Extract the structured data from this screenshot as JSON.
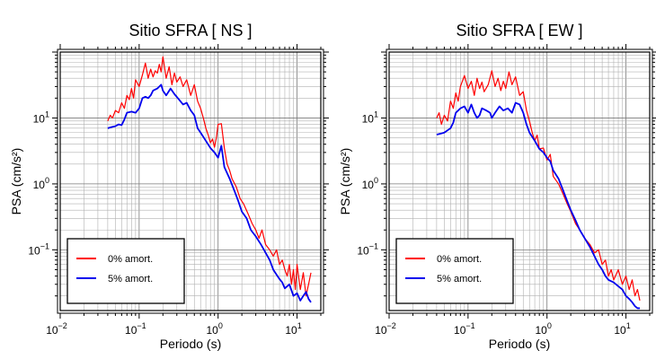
{
  "chart_data": [
    {
      "type": "line",
      "title": "Sitio SFRA [ NS ]",
      "xlabel": "Periodo (s)",
      "ylabel": "PSA (cm/s²)",
      "xscale": "log",
      "yscale": "log",
      "xlim": [
        0.01,
        20
      ],
      "ylim": [
        0.012,
        100
      ],
      "grid": true,
      "legend_position": "bottom-left",
      "x_ticks": [
        {
          "value": 0.01,
          "base": "10",
          "exp": "−2"
        },
        {
          "value": 0.1,
          "base": "10",
          "exp": "−1"
        },
        {
          "value": 1,
          "base": "10",
          "exp": "0"
        },
        {
          "value": 10,
          "base": "10",
          "exp": "1"
        }
      ],
      "y_ticks": [
        {
          "value": 0.1,
          "base": "10",
          "exp": "−1"
        },
        {
          "value": 1,
          "base": "10",
          "exp": "0"
        },
        {
          "value": 10,
          "base": "10",
          "exp": "1"
        }
      ],
      "series": [
        {
          "name": "0% amort.",
          "color": "#ff0000",
          "x": [
            0.04,
            0.043,
            0.046,
            0.05,
            0.055,
            0.06,
            0.065,
            0.07,
            0.075,
            0.08,
            0.085,
            0.09,
            0.1,
            0.11,
            0.12,
            0.13,
            0.14,
            0.15,
            0.16,
            0.17,
            0.18,
            0.19,
            0.2,
            0.22,
            0.24,
            0.26,
            0.28,
            0.3,
            0.33,
            0.36,
            0.4,
            0.45,
            0.5,
            0.55,
            0.6,
            0.65,
            0.7,
            0.75,
            0.8,
            0.85,
            0.9,
            0.95,
            1.0,
            1.1,
            1.2,
            1.3,
            1.4,
            1.5,
            1.7,
            1.9,
            2.1,
            2.4,
            2.7,
            3.0,
            3.3,
            3.6,
            4.0,
            4.5,
            5.0,
            5.5,
            6.0,
            6.5,
            7.0,
            7.5,
            8.0,
            8.5,
            9.0,
            9.5,
            10,
            11,
            12,
            13,
            14,
            15
          ],
          "y": [
            9,
            11,
            10,
            13,
            12,
            17,
            14,
            22,
            19,
            28,
            20,
            38,
            30,
            45,
            68,
            40,
            55,
            42,
            52,
            48,
            65,
            50,
            85,
            40,
            60,
            32,
            48,
            35,
            42,
            30,
            38,
            22,
            32,
            18,
            14,
            10,
            7,
            5.5,
            4.2,
            4.8,
            3.6,
            5,
            8,
            8.2,
            3.5,
            2.0,
            1.6,
            1.2,
            0.9,
            0.6,
            0.5,
            0.35,
            0.25,
            0.2,
            0.15,
            0.2,
            0.12,
            0.1,
            0.08,
            0.1,
            0.06,
            0.07,
            0.05,
            0.04,
            0.06,
            0.03,
            0.05,
            0.025,
            0.06,
            0.025,
            0.045,
            0.02,
            0.03,
            0.045
          ]
        },
        {
          "name": "5% amort.",
          "color": "#0000ee",
          "x": [
            0.04,
            0.045,
            0.05,
            0.055,
            0.06,
            0.065,
            0.07,
            0.08,
            0.09,
            0.1,
            0.11,
            0.12,
            0.13,
            0.14,
            0.15,
            0.17,
            0.19,
            0.2,
            0.22,
            0.25,
            0.28,
            0.32,
            0.36,
            0.4,
            0.45,
            0.5,
            0.55,
            0.6,
            0.7,
            0.8,
            0.9,
            1.0,
            1.1,
            1.2,
            1.4,
            1.6,
            1.8,
            2.0,
            2.3,
            2.6,
            3.0,
            3.5,
            4.0,
            4.5,
            5.0,
            5.5,
            6.0,
            6.5,
            7.0,
            8.0,
            9.0,
            10,
            11,
            12,
            13,
            14,
            15
          ],
          "y": [
            7,
            7.3,
            7.5,
            8,
            7.8,
            9.5,
            12,
            12.5,
            12,
            14,
            20,
            21,
            20,
            22,
            26,
            28,
            32,
            26,
            22,
            28,
            23,
            19,
            16,
            17,
            13,
            11,
            7,
            6,
            4.5,
            3.5,
            3,
            2.5,
            3.8,
            1.8,
            1.2,
            0.8,
            0.55,
            0.38,
            0.3,
            0.2,
            0.16,
            0.12,
            0.09,
            0.07,
            0.05,
            0.042,
            0.036,
            0.032,
            0.026,
            0.03,
            0.02,
            0.022,
            0.017,
            0.02,
            0.023,
            0.018,
            0.016
          ]
        }
      ]
    },
    {
      "type": "line",
      "title": "Sitio SFRA [ EW ]",
      "xlabel": "Periodo (s)",
      "ylabel": "PSA (cm/s²)",
      "xscale": "log",
      "yscale": "log",
      "xlim": [
        0.01,
        20
      ],
      "ylim": [
        0.012,
        100
      ],
      "grid": true,
      "legend_position": "bottom-left",
      "x_ticks": [
        {
          "value": 0.01,
          "base": "10",
          "exp": "−2"
        },
        {
          "value": 0.1,
          "base": "10",
          "exp": "−1"
        },
        {
          "value": 1,
          "base": "10",
          "exp": "0"
        },
        {
          "value": 10,
          "base": "10",
          "exp": "1"
        }
      ],
      "y_ticks": [
        {
          "value": 0.1,
          "base": "10",
          "exp": "−1"
        },
        {
          "value": 1,
          "base": "10",
          "exp": "0"
        },
        {
          "value": 10,
          "base": "10",
          "exp": "1"
        }
      ],
      "series": [
        {
          "name": "0% amort.",
          "color": "#ff0000",
          "x": [
            0.04,
            0.043,
            0.046,
            0.05,
            0.055,
            0.06,
            0.065,
            0.07,
            0.075,
            0.08,
            0.09,
            0.1,
            0.11,
            0.12,
            0.13,
            0.14,
            0.15,
            0.16,
            0.18,
            0.2,
            0.22,
            0.24,
            0.26,
            0.28,
            0.3,
            0.33,
            0.36,
            0.4,
            0.45,
            0.5,
            0.55,
            0.6,
            0.65,
            0.7,
            0.75,
            0.8,
            0.9,
            1.0,
            1.1,
            1.2,
            1.4,
            1.6,
            1.8,
            2.0,
            2.3,
            2.6,
            3.0,
            3.5,
            4.0,
            4.5,
            5.0,
            5.5,
            6.0,
            6.5,
            7.0,
            8.0,
            9.0,
            10,
            11,
            12,
            13,
            14,
            15
          ],
          "y": [
            10,
            12,
            8,
            11,
            9,
            18,
            14,
            24,
            18,
            30,
            44,
            28,
            36,
            22,
            40,
            28,
            35,
            25,
            32,
            52,
            30,
            40,
            26,
            36,
            28,
            50,
            32,
            42,
            22,
            25,
            13,
            9,
            6,
            4.5,
            5.5,
            3.4,
            3.5,
            2.3,
            2.8,
            1.3,
            1.0,
            0.7,
            0.5,
            0.38,
            0.25,
            0.2,
            0.15,
            0.12,
            0.09,
            0.1,
            0.06,
            0.07,
            0.04,
            0.05,
            0.035,
            0.05,
            0.03,
            0.04,
            0.025,
            0.035,
            0.02,
            0.025,
            0.017
          ]
        },
        {
          "name": "5% amort.",
          "color": "#0000ee",
          "x": [
            0.04,
            0.045,
            0.05,
            0.055,
            0.06,
            0.065,
            0.07,
            0.08,
            0.09,
            0.1,
            0.11,
            0.12,
            0.13,
            0.14,
            0.15,
            0.17,
            0.19,
            0.2,
            0.22,
            0.25,
            0.28,
            0.32,
            0.36,
            0.4,
            0.45,
            0.5,
            0.55,
            0.6,
            0.7,
            0.8,
            0.9,
            1.0,
            1.1,
            1.2,
            1.4,
            1.6,
            1.8,
            2.0,
            2.3,
            2.6,
            3.0,
            3.5,
            4.0,
            4.5,
            5.0,
            5.5,
            6.0,
            7.0,
            8.0,
            9.0,
            10,
            11,
            12,
            13,
            14,
            15
          ],
          "y": [
            5.6,
            5.8,
            6,
            6.5,
            7,
            8.5,
            12,
            14,
            15,
            12,
            16,
            12,
            10,
            11,
            14,
            13,
            12,
            10,
            12,
            15,
            13,
            14,
            12,
            17,
            16,
            12,
            8,
            6,
            4.5,
            3.4,
            3,
            2.5,
            2.2,
            1.6,
            1.2,
            0.8,
            0.55,
            0.4,
            0.28,
            0.2,
            0.15,
            0.11,
            0.08,
            0.06,
            0.05,
            0.04,
            0.035,
            0.032,
            0.028,
            0.025,
            0.02,
            0.018,
            0.016,
            0.014,
            0.013,
            0.013
          ]
        }
      ]
    }
  ]
}
